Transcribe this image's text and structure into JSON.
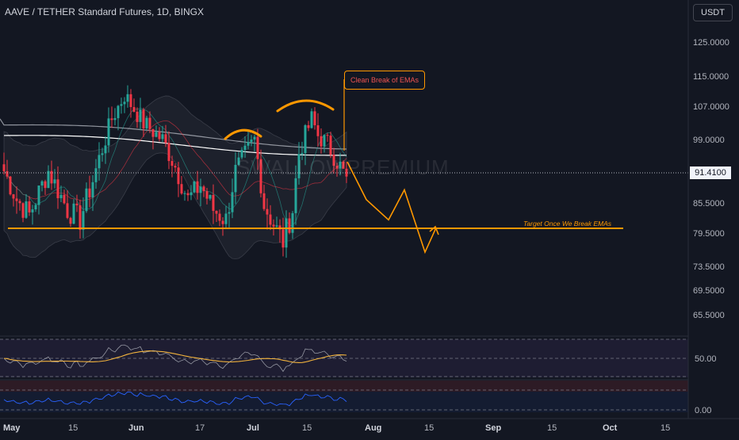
{
  "header": {
    "title": "AAVE / TETHER Standard Futures, 1D, BINGX",
    "currency": "USDT"
  },
  "watermark": "SWALLOWPREMIUM",
  "price_axis": {
    "ticks": [
      "125.0000",
      "115.0000",
      "107.0000",
      "99.0000",
      "85.5000",
      "79.5000",
      "73.5000",
      "69.5000",
      "65.5000"
    ],
    "current_price": "91.4100"
  },
  "time_axis": {
    "ticks": [
      "May",
      "15",
      "Jun",
      "17",
      "Jul",
      "15",
      "Aug",
      "15",
      "Sep",
      "15",
      "Oct",
      "15"
    ]
  },
  "indicators": {
    "rsi_level_label": "50.00",
    "lower_level_label": "0.00"
  },
  "annotations": {
    "callout": "Clean Break of EMAs",
    "target": "Target Once We Break EMAs"
  },
  "colors": {
    "background": "#131722",
    "bull": "#26a69a",
    "bear": "#f23645",
    "annotation": "#ff9800",
    "ema_white": "#ffffff",
    "ema_grey": "#b2b5be",
    "rsi_line": "#b2b5be",
    "rsi_ma": "#f2b33d",
    "lower_line": "#2962ff"
  },
  "chart_data": {
    "type": "candlestick",
    "symbol": "AAVE / TETHER Standard Futures",
    "interval": "1D",
    "exchange": "BINGX",
    "current_price": 91.41,
    "ylim": [
      62,
      130
    ],
    "scale": "log",
    "annotations": {
      "head_and_shoulders_arcs": 2,
      "target_price": 80.2,
      "projected_path": [
        94,
        86,
        82,
        88,
        76,
        80.5
      ]
    }
  }
}
